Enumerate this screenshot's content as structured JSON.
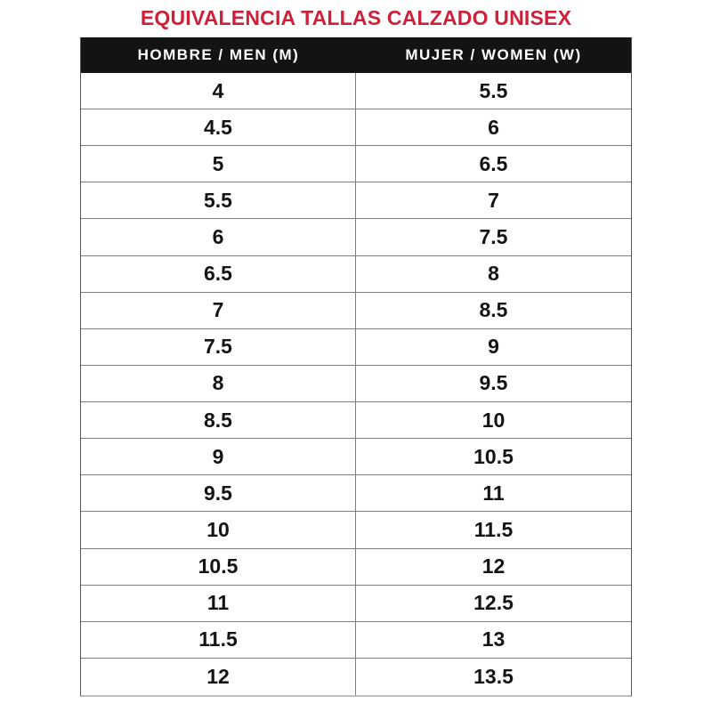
{
  "title": "EQUIVALENCIA TALLAS CALZADO UNISEX",
  "colors": {
    "title_red": "#CE2039",
    "header_bg": "#131313",
    "header_text": "#FFFFFF",
    "grid_line": "#7D7D7D",
    "outer_border": "#555555",
    "bottom_border": "#BFBFBF",
    "cell_text": "#141414",
    "background": "#FFFFFF"
  },
  "table": {
    "headers": [
      "HOMBRE / MEN (M)",
      "MUJER / WOMEN (W)"
    ],
    "rows": [
      {
        "men": "4",
        "women": "5.5"
      },
      {
        "men": "4.5",
        "women": "6"
      },
      {
        "men": "5",
        "women": "6.5"
      },
      {
        "men": "5.5",
        "women": "7"
      },
      {
        "men": "6",
        "women": "7.5"
      },
      {
        "men": "6.5",
        "women": "8"
      },
      {
        "men": "7",
        "women": "8.5"
      },
      {
        "men": "7.5",
        "women": "9"
      },
      {
        "men": "8",
        "women": "9.5"
      },
      {
        "men": "8.5",
        "women": "10"
      },
      {
        "men": "9",
        "women": "10.5"
      },
      {
        "men": "9.5",
        "women": "11"
      },
      {
        "men": "10",
        "women": "11.5"
      },
      {
        "men": "10.5",
        "women": "12"
      },
      {
        "men": "11",
        "women": "12.5"
      },
      {
        "men": "11.5",
        "women": "13"
      },
      {
        "men": "12",
        "women": "13.5"
      }
    ]
  },
  "chart_data": {
    "type": "table",
    "title": "EQUIVALENCIA TALLAS CALZADO UNISEX",
    "columns": [
      "HOMBRE / MEN (M)",
      "MUJER / WOMEN (W)"
    ],
    "rows": [
      [
        "4",
        "5.5"
      ],
      [
        "4.5",
        "6"
      ],
      [
        "5",
        "6.5"
      ],
      [
        "5.5",
        "7"
      ],
      [
        "6",
        "7.5"
      ],
      [
        "6.5",
        "8"
      ],
      [
        "7",
        "8.5"
      ],
      [
        "7.5",
        "9"
      ],
      [
        "8",
        "9.5"
      ],
      [
        "8.5",
        "10"
      ],
      [
        "9",
        "10.5"
      ],
      [
        "9.5",
        "11"
      ],
      [
        "10",
        "11.5"
      ],
      [
        "10.5",
        "12"
      ],
      [
        "11",
        "12.5"
      ],
      [
        "11.5",
        "13"
      ],
      [
        "12",
        "13.5"
      ]
    ]
  }
}
